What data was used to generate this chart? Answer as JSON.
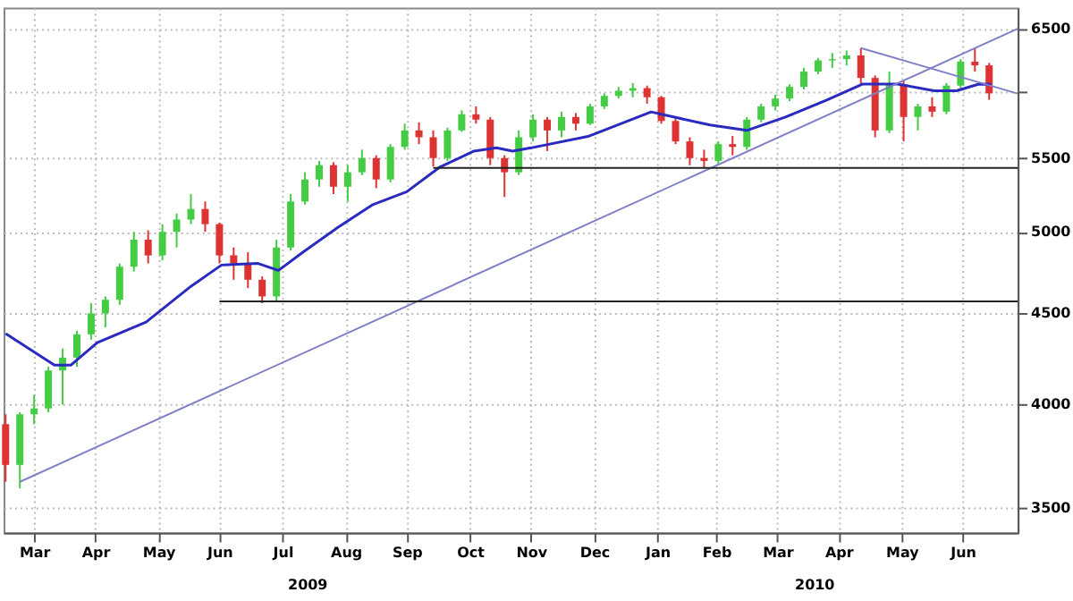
{
  "chart_data": {
    "type": "candlestick",
    "log": "y",
    "grid": true,
    "marker": "none",
    "line_style": "solid",
    "xlim": [
      "2009-03-01",
      "2010-07-12"
    ],
    "ylim": [
      3390,
      6680
    ],
    "yticks": [
      3500,
      4000,
      4500,
      5000,
      5500,
      {
        "value": 6000,
        "label": null
      },
      6500
    ],
    "xticks": [
      {
        "value": "2009-03-16",
        "label": "Mar"
      },
      {
        "value": "2009-04-15",
        "label": "Apr"
      },
      {
        "value": "2009-05-16",
        "label": "May"
      },
      {
        "value": "2009-06-15",
        "label": "Jun"
      },
      {
        "value": "2009-07-16",
        "label": "Jul"
      },
      {
        "value": "2009-08-16",
        "label": "Aug"
      },
      {
        "value": "2009-09-15",
        "label": "Sep"
      },
      {
        "value": "2009-10-16",
        "label": "Oct"
      },
      {
        "value": "2009-11-15",
        "label": "Nov"
      },
      {
        "value": "2009-12-16",
        "label": "Dec"
      },
      {
        "value": "2010-01-16",
        "label": "Jan"
      },
      {
        "value": "2010-02-14",
        "label": "Feb"
      },
      {
        "value": "2010-03-16",
        "label": "Mar"
      },
      {
        "value": "2010-04-15",
        "label": "Apr"
      },
      {
        "value": "2010-05-16",
        "label": "May"
      },
      {
        "value": "2010-06-15",
        "label": "Jun"
      }
    ],
    "annotations": [
      "2009",
      "2010"
    ],
    "x": [
      "2009-03-02",
      "2009-03-09",
      "2009-03-16",
      "2009-03-23",
      "2009-03-30",
      "2009-04-06",
      "2009-04-13",
      "2009-04-20",
      "2009-04-27",
      "2009-05-04",
      "2009-05-11",
      "2009-05-18",
      "2009-05-25",
      "2009-06-01",
      "2009-06-08",
      "2009-06-15",
      "2009-06-22",
      "2009-06-29",
      "2009-07-06",
      "2009-07-13",
      "2009-07-20",
      "2009-07-27",
      "2009-08-03",
      "2009-08-10",
      "2009-08-17",
      "2009-08-24",
      "2009-08-31",
      "2009-09-07",
      "2009-09-14",
      "2009-09-21",
      "2009-09-28",
      "2009-10-05",
      "2009-10-12",
      "2009-10-19",
      "2009-10-26",
      "2009-11-02",
      "2009-11-09",
      "2009-11-16",
      "2009-11-23",
      "2009-11-30",
      "2009-12-07",
      "2009-12-14",
      "2009-12-21",
      "2009-12-28",
      "2010-01-04",
      "2010-01-11",
      "2010-01-18",
      "2010-01-25",
      "2010-02-01",
      "2010-02-08",
      "2010-02-15",
      "2010-02-22",
      "2010-03-01",
      "2010-03-08",
      "2010-03-15",
      "2010-03-22",
      "2010-03-29",
      "2010-04-05",
      "2010-04-12",
      "2010-04-19",
      "2010-04-26",
      "2010-05-03",
      "2010-05-10",
      "2010-05-17",
      "2010-05-24",
      "2010-05-31",
      "2010-06-07",
      "2010-06-14",
      "2010-06-21",
      "2010-06-28"
    ],
    "ohlc": [
      [
        3900,
        3950,
        3620,
        3700
      ],
      [
        3700,
        3960,
        3590,
        3950
      ],
      [
        3950,
        4050,
        3900,
        3980
      ],
      [
        3980,
        4200,
        3960,
        4180
      ],
      [
        4180,
        4300,
        4000,
        4250
      ],
      [
        4250,
        4400,
        4200,
        4380
      ],
      [
        4380,
        4560,
        4350,
        4500
      ],
      [
        4500,
        4600,
        4420,
        4580
      ],
      [
        4580,
        4800,
        4550,
        4780
      ],
      [
        4780,
        5000,
        4750,
        4950
      ],
      [
        4950,
        5010,
        4800,
        4850
      ],
      [
        4850,
        5050,
        4820,
        5000
      ],
      [
        5000,
        5120,
        4900,
        5080
      ],
      [
        5080,
        5250,
        5050,
        5150
      ],
      [
        5150,
        5200,
        5000,
        5050
      ],
      [
        5050,
        5060,
        4800,
        4850
      ],
      [
        4850,
        4900,
        4700,
        4800
      ],
      [
        4800,
        4870,
        4650,
        4700
      ],
      [
        4700,
        4720,
        4560,
        4600
      ],
      [
        4600,
        4950,
        4570,
        4900
      ],
      [
        4900,
        5250,
        4880,
        5200
      ],
      [
        5200,
        5400,
        5180,
        5350
      ],
      [
        5350,
        5480,
        5300,
        5450
      ],
      [
        5450,
        5470,
        5250,
        5300
      ],
      [
        5300,
        5450,
        5200,
        5400
      ],
      [
        5400,
        5560,
        5380,
        5500
      ],
      [
        5500,
        5520,
        5290,
        5350
      ],
      [
        5350,
        5600,
        5330,
        5580
      ],
      [
        5580,
        5750,
        5560,
        5700
      ],
      [
        5700,
        5760,
        5600,
        5650
      ],
      [
        5650,
        5700,
        5440,
        5500
      ],
      [
        5500,
        5720,
        5480,
        5700
      ],
      [
        5700,
        5850,
        5690,
        5820
      ],
      [
        5820,
        5880,
        5750,
        5780
      ],
      [
        5780,
        5800,
        5450,
        5500
      ],
      [
        5500,
        5520,
        5230,
        5400
      ],
      [
        5400,
        5700,
        5380,
        5650
      ],
      [
        5650,
        5820,
        5620,
        5780
      ],
      [
        5780,
        5800,
        5550,
        5700
      ],
      [
        5700,
        5840,
        5650,
        5800
      ],
      [
        5800,
        5830,
        5700,
        5750
      ],
      [
        5750,
        5900,
        5740,
        5880
      ],
      [
        5880,
        5980,
        5860,
        5960
      ],
      [
        5960,
        6030,
        5940,
        6000
      ],
      [
        6000,
        6060,
        5950,
        6020
      ],
      [
        6020,
        6040,
        5900,
        5950
      ],
      [
        5950,
        5960,
        5750,
        5770
      ],
      [
        5770,
        5800,
        5600,
        5620
      ],
      [
        5620,
        5650,
        5450,
        5500
      ],
      [
        5500,
        5560,
        5430,
        5480
      ],
      [
        5480,
        5620,
        5460,
        5600
      ],
      [
        5600,
        5660,
        5520,
        5580
      ],
      [
        5580,
        5800,
        5560,
        5780
      ],
      [
        5780,
        5900,
        5760,
        5880
      ],
      [
        5880,
        5970,
        5850,
        5940
      ],
      [
        5940,
        6050,
        5920,
        6030
      ],
      [
        6030,
        6180,
        6010,
        6150
      ],
      [
        6150,
        6260,
        6130,
        6240
      ],
      [
        6240,
        6300,
        6180,
        6250
      ],
      [
        6250,
        6320,
        6200,
        6280
      ],
      [
        6280,
        6340,
        6050,
        6100
      ],
      [
        6100,
        6120,
        5650,
        5700
      ],
      [
        5700,
        6150,
        5680,
        6050
      ],
      [
        6050,
        6080,
        5620,
        5800
      ],
      [
        5800,
        5900,
        5700,
        5880
      ],
      [
        5880,
        5950,
        5800,
        5840
      ],
      [
        5840,
        6060,
        5820,
        6040
      ],
      [
        6040,
        6250,
        6020,
        6230
      ],
      [
        6230,
        6340,
        6150,
        6200
      ],
      [
        6200,
        6220,
        5930,
        5980
      ]
    ],
    "colors": [
      "#dd3333",
      "#44cc44",
      "#44cc44",
      "#44cc44",
      "#44cc44",
      "#44cc44",
      "#44cc44",
      "#44cc44",
      "#44cc44",
      "#44cc44",
      "#dd3333",
      "#44cc44",
      "#44cc44",
      "#44cc44",
      "#dd3333",
      "#dd3333",
      "#dd3333",
      "#dd3333",
      "#dd3333",
      "#44cc44",
      "#44cc44",
      "#44cc44",
      "#44cc44",
      "#dd3333",
      "#44cc44",
      "#44cc44",
      "#dd3333",
      "#44cc44",
      "#44cc44",
      "#dd3333",
      "#dd3333",
      "#44cc44",
      "#44cc44",
      "#dd3333",
      "#dd3333",
      "#dd3333",
      "#44cc44",
      "#44cc44",
      "#dd3333",
      "#44cc44",
      "#dd3333",
      "#44cc44",
      "#44cc44",
      "#44cc44",
      "#44cc44",
      "#dd3333",
      "#dd3333",
      "#dd3333",
      "#dd3333",
      "#dd3333",
      "#44cc44",
      "#dd3333",
      "#44cc44",
      "#44cc44",
      "#44cc44",
      "#44cc44",
      "#44cc44",
      "#44cc44",
      "#44cc44",
      "#44cc44",
      "#dd3333",
      "#dd3333",
      "#44cc44",
      "#dd3333",
      "#44cc44",
      "#dd3333",
      "#44cc44",
      "#44cc44",
      "#dd3333",
      "#dd3333"
    ],
    "series": [
      {
        "type": "line",
        "color": "#2a2ac0",
        "x": [
          "2009-03-02",
          "2009-03-26",
          "2009-04-03",
          "2009-04-16",
          "2009-05-10",
          "2009-06-01",
          "2009-06-16",
          "2009-07-04",
          "2009-07-14",
          "2009-07-26",
          "2009-08-12",
          "2009-08-29",
          "2009-09-15",
          "2009-10-01",
          "2009-10-18",
          "2009-10-29",
          "2009-11-06",
          "2009-11-15",
          "2009-12-13",
          "2010-01-13",
          "2010-01-24",
          "2010-02-11",
          "2010-03-01",
          "2010-03-20",
          "2010-04-09",
          "2010-04-27",
          "2010-05-14",
          "2010-06-01",
          "2010-06-12",
          "2010-06-23",
          "2010-06-29"
        ],
        "values": [
          4384,
          4209,
          4209,
          4333,
          4450,
          4660,
          4790,
          4800,
          4757,
          4870,
          5027,
          5177,
          5266,
          5434,
          5550,
          5573,
          5550,
          5573,
          5656,
          5838,
          5800,
          5740,
          5700,
          5800,
          5926,
          6052,
          6052,
          6000,
          6000,
          6052,
          6050
        ]
      },
      {
        "type": "line",
        "color": "#8080c8",
        "x": [
          "2009-03-09",
          "2010-07-12"
        ],
        "values": [
          3620,
          6500
        ]
      },
      {
        "type": "line",
        "color": "#8080c8",
        "x": [
          "2010-04-26",
          "2010-07-12"
        ],
        "values": [
          6340,
          5978
        ]
      },
      {
        "type": "line",
        "color": "#222222",
        "x": [
          "2009-09-28",
          "2010-07-12"
        ],
        "values": [
          5430,
          5430
        ]
      },
      {
        "type": "line",
        "color": "#222222",
        "x": [
          "2009-06-15",
          "2010-07-12"
        ],
        "values": [
          4570,
          4570
        ]
      }
    ]
  }
}
